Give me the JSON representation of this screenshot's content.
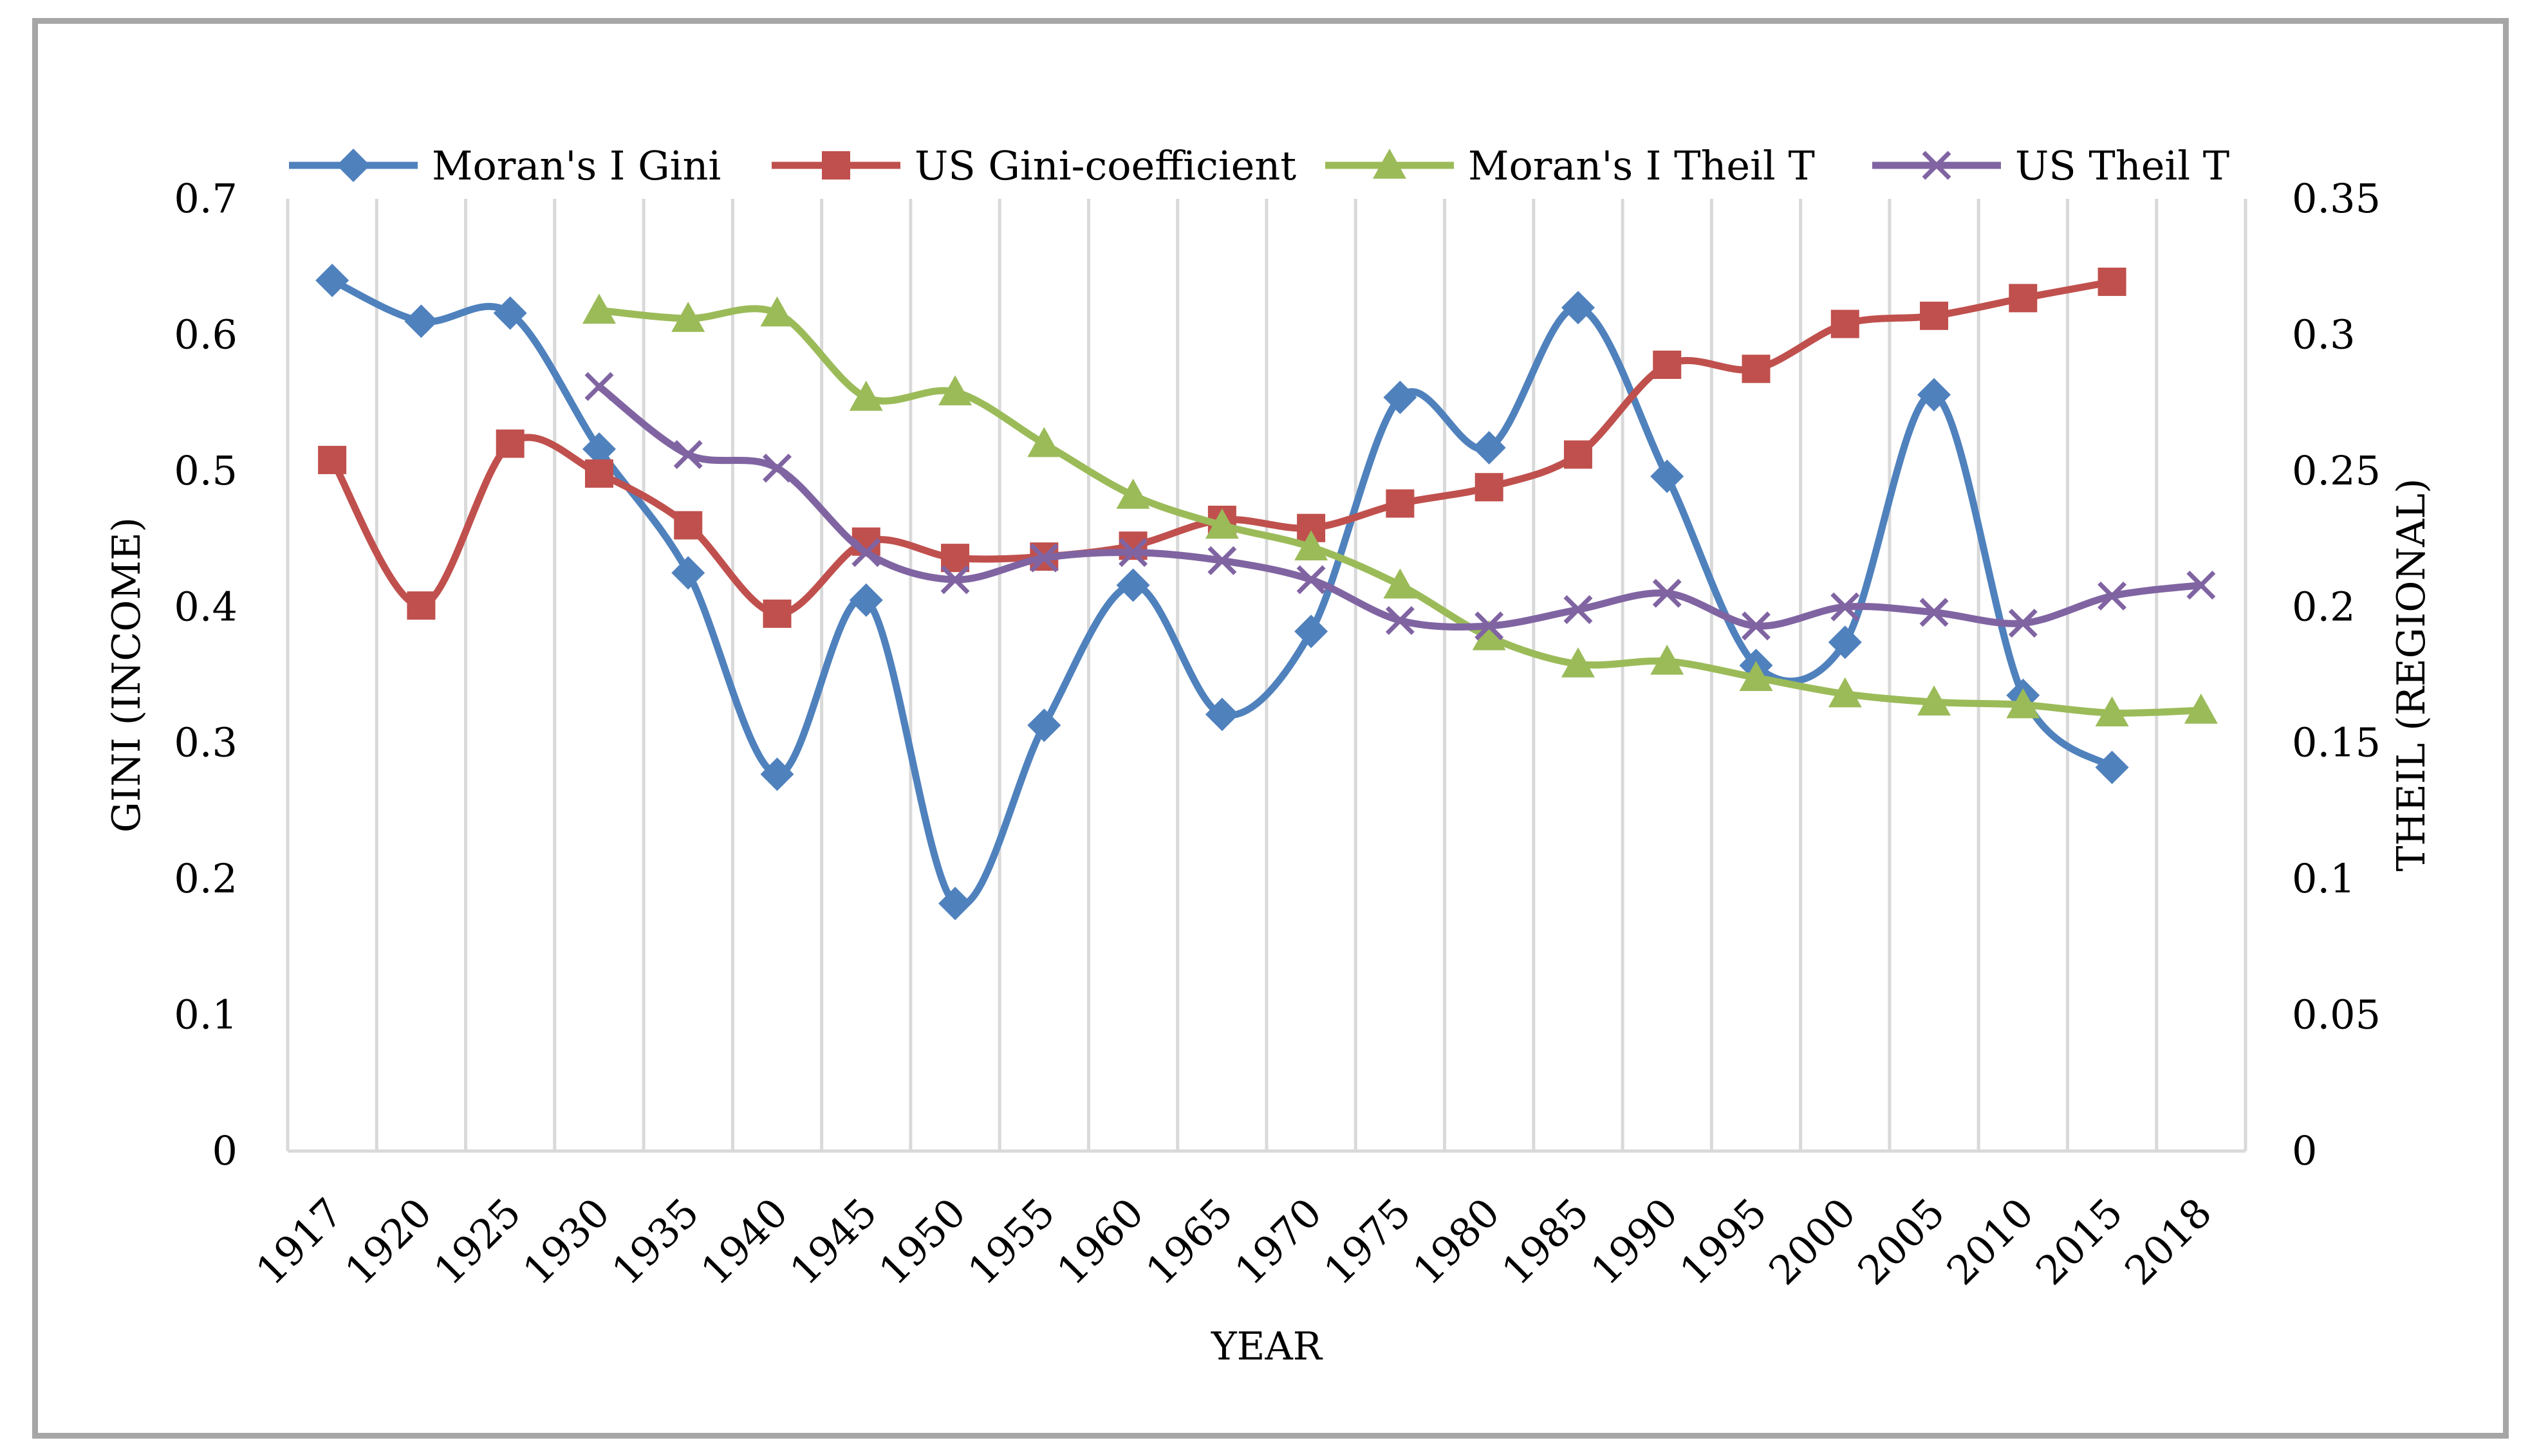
{
  "chart_data": {
    "type": "line",
    "title": "",
    "xlabel": "YEAR",
    "ylabel": "GINI (INCOME)",
    "y2label": "THEIL (REGIONAL)",
    "categories": [
      "1917",
      "1920",
      "1925",
      "1930",
      "1935",
      "1940",
      "1945",
      "1950",
      "1955",
      "1960",
      "1965",
      "1970",
      "1975",
      "1980",
      "1985",
      "1990",
      "1995",
      "2000",
      "2005",
      "2010",
      "2015",
      "2018"
    ],
    "ylim": [
      0,
      0.7
    ],
    "y2lim": [
      0,
      0.35
    ],
    "yticks": [
      "0",
      "0.1",
      "0.2",
      "0.3",
      "0.4",
      "0.5",
      "0.6",
      "0.7"
    ],
    "y2ticks": [
      "0",
      "0.05",
      "0.1",
      "0.15",
      "0.2",
      "0.25",
      "0.3",
      "0.35"
    ],
    "legend_position": "top",
    "grid": true,
    "series": [
      {
        "name": "Moran's I Gini",
        "axis": "left",
        "color": "#4f81bd",
        "marker": "diamond",
        "values": [
          0.64,
          0.61,
          0.616,
          0.516,
          0.425,
          0.277,
          0.405,
          0.182,
          0.313,
          0.416,
          0.321,
          0.382,
          0.554,
          0.517,
          0.62,
          0.496,
          0.357,
          0.374,
          0.556,
          0.335,
          0.282,
          null
        ]
      },
      {
        "name": "US Gini-coefficient",
        "axis": "left",
        "color": "#c0504d",
        "marker": "square",
        "values": [
          0.508,
          0.401,
          0.52,
          0.498,
          0.46,
          0.395,
          0.448,
          0.436,
          0.437,
          0.445,
          0.464,
          0.458,
          0.476,
          0.488,
          0.512,
          0.578,
          0.575,
          0.608,
          0.614,
          0.627,
          0.639,
          null
        ]
      },
      {
        "name": "Moran's I Theil T",
        "axis": "right",
        "color": "#9bbb59",
        "marker": "triangle",
        "values": [
          null,
          null,
          null,
          0.309,
          0.306,
          0.308,
          0.277,
          0.279,
          0.26,
          0.241,
          0.23,
          0.222,
          0.208,
          0.189,
          0.179,
          0.18,
          0.174,
          0.168,
          0.165,
          0.164,
          0.161,
          0.162
        ]
      },
      {
        "name": "US Theil T",
        "axis": "right",
        "color": "#8064a2",
        "marker": "x",
        "values": [
          null,
          null,
          null,
          0.281,
          0.256,
          0.251,
          0.22,
          0.21,
          0.218,
          0.22,
          0.217,
          0.21,
          0.195,
          0.193,
          0.199,
          0.205,
          0.193,
          0.2,
          0.198,
          0.194,
          0.204,
          0.208
        ]
      }
    ]
  }
}
